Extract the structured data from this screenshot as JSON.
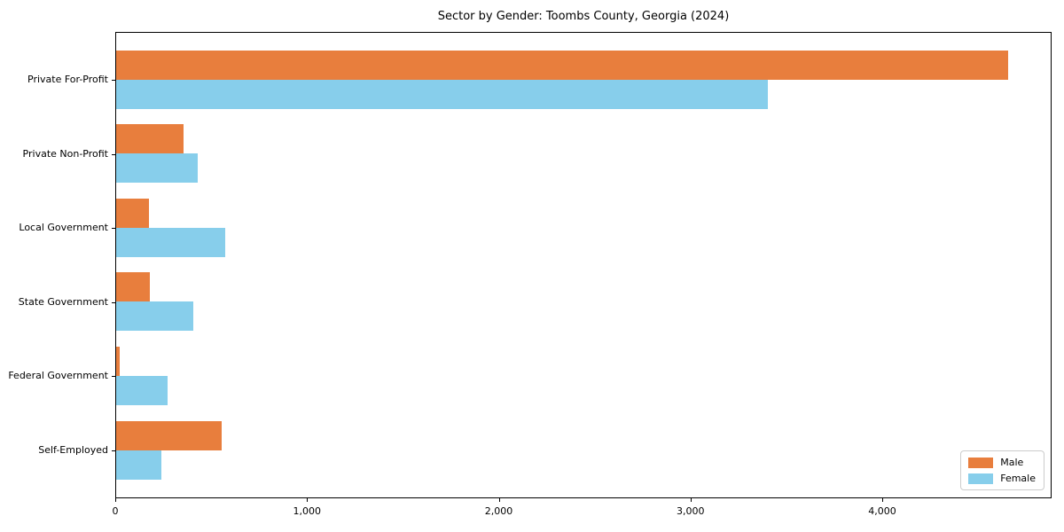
{
  "chart_data": {
    "type": "bar",
    "orientation": "horizontal",
    "title": "Sector by Gender: Toombs County, Georgia (2024)",
    "categories": [
      "Private For-Profit",
      "Private Non-Profit",
      "Local Government",
      "State Government",
      "Federal Government",
      "Self-Employed"
    ],
    "series": [
      {
        "name": "Male",
        "color": "#e87e3d",
        "values": [
          4650,
          350,
          170,
          175,
          20,
          550
        ]
      },
      {
        "name": "Female",
        "color": "#87ceeb",
        "values": [
          3400,
          425,
          570,
          400,
          270,
          235
        ]
      }
    ],
    "xlabel": "",
    "ylabel": "",
    "xlim": [
      0,
      4883
    ],
    "xticks": [
      0,
      1000,
      2000,
      3000,
      4000
    ],
    "xtick_labels": [
      "0",
      "1,000",
      "2,000",
      "3,000",
      "4,000"
    ],
    "grid": false,
    "legend_position": "lower right",
    "colors": {
      "male": "#e87e3d",
      "female": "#87ceeb",
      "spine": "#000000",
      "text": "#000000",
      "legend_border": "#cccccc"
    }
  }
}
